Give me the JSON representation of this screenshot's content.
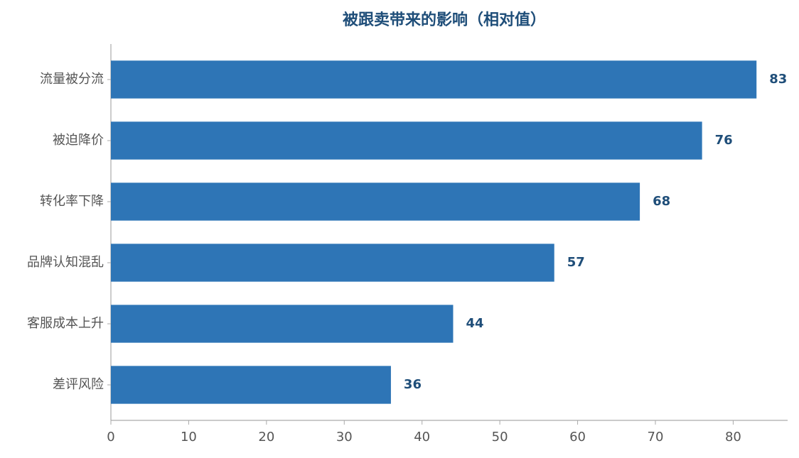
{
  "chart_data": {
    "type": "barh",
    "title": "被跟卖带来的影响（相对值）",
    "categories": [
      "流量被分流",
      "被迫降价",
      "转化率下降",
      "品牌认知混乱",
      "客服成本上升",
      "差评风险"
    ],
    "values": [
      83,
      76,
      68,
      57,
      44,
      36
    ],
    "color": "#2e75b6",
    "xlim": [
      0,
      87
    ],
    "xticks": [
      0,
      10,
      20,
      30,
      40,
      50,
      60,
      70,
      80
    ],
    "grid": false
  }
}
